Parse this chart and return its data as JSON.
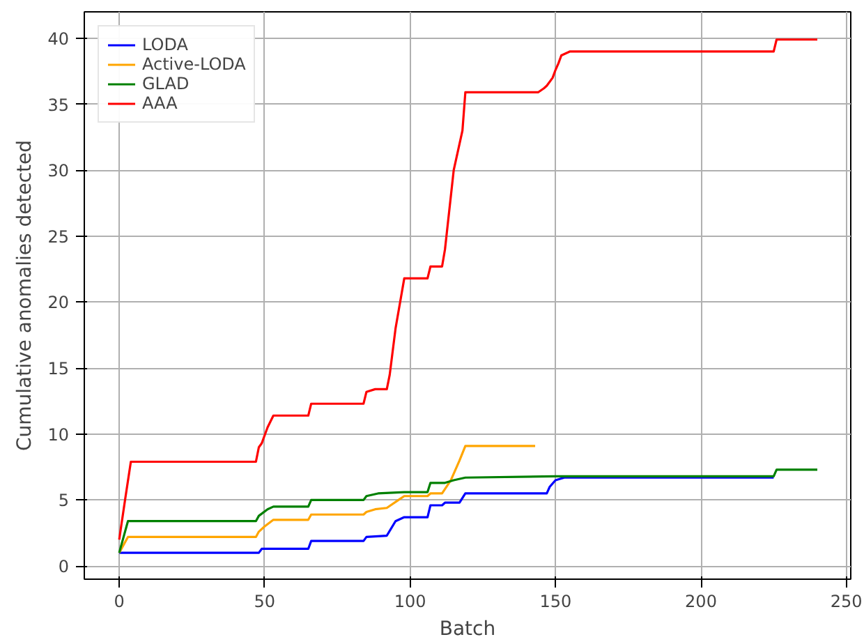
{
  "chart_data": {
    "type": "line",
    "xlabel": "Batch",
    "ylabel": "Cumulative anomalies detected",
    "xlim": [
      -12,
      251.5
    ],
    "ylim": [
      -1,
      42
    ],
    "xticks": [
      0,
      50,
      100,
      150,
      200,
      250
    ],
    "yticks": [
      0,
      5,
      10,
      15,
      20,
      25,
      30,
      35,
      40
    ],
    "grid": true,
    "legend": "top left",
    "line_style": "solid",
    "series": [
      {
        "name": "LODA",
        "color": "#0000ff",
        "x": [
          0,
          48,
          49,
          65,
          66,
          84,
          85,
          92,
          95,
          98,
          106,
          107,
          111,
          112,
          117,
          119,
          147,
          148,
          150,
          153,
          225
        ],
        "values": [
          1.0,
          1.0,
          1.3,
          1.3,
          1.9,
          1.9,
          2.2,
          2.3,
          3.4,
          3.7,
          3.7,
          4.6,
          4.6,
          4.8,
          4.8,
          5.5,
          5.5,
          6.0,
          6.5,
          6.7,
          6.7
        ]
      },
      {
        "name": "Active-LODA",
        "color": "#ffa500",
        "x": [
          0,
          3,
          47,
          48,
          50,
          53,
          65,
          66,
          84,
          85,
          88,
          92,
          96,
          98,
          106,
          107,
          111,
          114,
          117,
          119,
          143
        ],
        "values": [
          1.0,
          2.2,
          2.2,
          2.6,
          3.0,
          3.5,
          3.5,
          3.9,
          3.9,
          4.1,
          4.3,
          4.4,
          5.0,
          5.3,
          5.3,
          5.5,
          5.5,
          6.5,
          8.0,
          9.1,
          9.1
        ]
      },
      {
        "name": "GLAD",
        "color": "#008000",
        "x": [
          0,
          3,
          47,
          48,
          51,
          53,
          65,
          66,
          84,
          85,
          89,
          98,
          106,
          107,
          112,
          115,
          119,
          150,
          225,
          226,
          240
        ],
        "values": [
          1.0,
          3.4,
          3.4,
          3.8,
          4.3,
          4.5,
          4.5,
          5.0,
          5.0,
          5.3,
          5.5,
          5.6,
          5.6,
          6.3,
          6.3,
          6.5,
          6.7,
          6.8,
          6.8,
          7.3,
          7.3
        ]
      },
      {
        "name": "AAA",
        "color": "#ff0000",
        "x": [
          0,
          2,
          4,
          47,
          48,
          49,
          51,
          53,
          65,
          66,
          84,
          85,
          88,
          92,
          93,
          95,
          98,
          106,
          107,
          111,
          112,
          115,
          118,
          119,
          144,
          146,
          147,
          149,
          150,
          151,
          152,
          155,
          225,
          226,
          240
        ],
        "values": [
          2.0,
          5.0,
          7.9,
          7.9,
          9.0,
          9.3,
          10.5,
          11.4,
          11.4,
          12.3,
          12.3,
          13.2,
          13.4,
          13.4,
          14.5,
          18.0,
          21.8,
          21.8,
          22.7,
          22.7,
          24.0,
          30.0,
          33.0,
          35.9,
          35.9,
          36.2,
          36.4,
          37.0,
          37.6,
          38.1,
          38.7,
          39.0,
          39.0,
          39.9,
          39.9
        ]
      }
    ]
  }
}
